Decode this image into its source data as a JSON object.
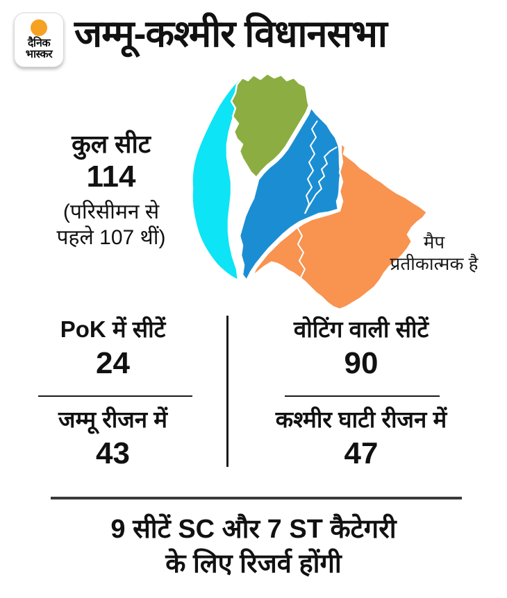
{
  "header": {
    "logo_line1": "दैनिक",
    "logo_line2": "भास्कर",
    "title": "जम्मू-कश्मीर विधानसभा"
  },
  "map": {
    "note_line1": "मैप",
    "note_line2": "प्रतीकात्मक है",
    "regions": [
      {
        "name": "pok",
        "color": "#0de4f5"
      },
      {
        "name": "north",
        "color": "#8cad41"
      },
      {
        "name": "kashmir-valley",
        "color": "#1b8ed3"
      },
      {
        "name": "jammu",
        "color": "#f89350"
      }
    ]
  },
  "total_seats": {
    "label": "कुल सीट",
    "value": "114",
    "note_line1": "(परिसीमन से",
    "note_line2": "पहले 107 थीं)"
  },
  "stats": [
    {
      "label": "PoK में सीटें",
      "value": "24"
    },
    {
      "label": "वोटिंग वाली सीटें",
      "value": "90"
    },
    {
      "label": "जम्मू रीजन में",
      "value": "43"
    },
    {
      "label": "कश्मीर घाटी रीजन में",
      "value": "47"
    }
  ],
  "footer": {
    "line1_segments": [
      {
        "text": "9 ",
        "bold": true
      },
      {
        "text": "सीटें SC और ",
        "bold": false
      },
      {
        "text": "7 ",
        "bold": true
      },
      {
        "text": "ST कैटेगरी",
        "bold": false
      }
    ],
    "line2": "के लिए रिजर्व होंगी"
  }
}
